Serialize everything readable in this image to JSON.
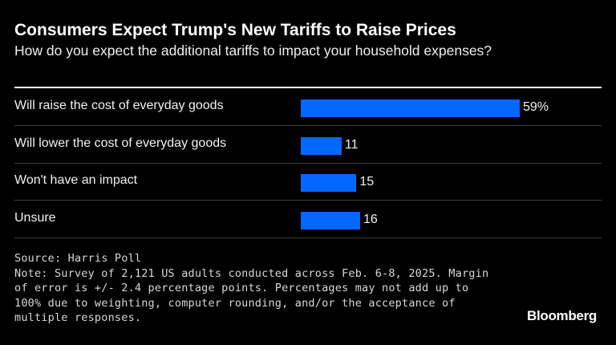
{
  "title": "Consumers Expect Trump's New Tariffs to Raise Prices",
  "subtitle": "How do you expect the additional tariffs to impact your household expenses?",
  "chart_data": {
    "type": "bar",
    "orientation": "horizontal",
    "title": "Consumers Expect Trump's New Tariffs to Raise Prices",
    "subtitle": "How do you expect the additional tariffs to impact your household expenses?",
    "categories": [
      "Will raise the cost of everyday goods",
      "Will lower the cost of everyday goods",
      "Won't have an impact",
      "Unsure"
    ],
    "values": [
      59,
      11,
      15,
      16
    ],
    "data_labels": [
      "59%",
      "11",
      "15",
      "16"
    ],
    "unit": "%",
    "xlim": [
      0,
      100
    ],
    "grid": false,
    "bar_color": "#0068ff"
  },
  "footer": {
    "source": "Source: Harris Poll",
    "note_lines": [
      "Note: Survey of 2,121 US adults conducted across Feb. 6-8, 2025. Margin",
      "of error is +/- 2.4 percentage points. Percentages may not add up to",
      "100% due to weighting, computer rounding, and/or the acceptance of",
      "multiple responses."
    ],
    "logo": "Bloomberg"
  }
}
